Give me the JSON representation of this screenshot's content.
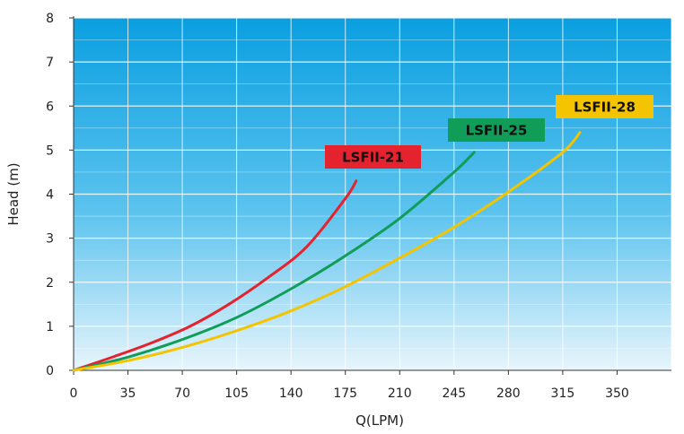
{
  "chart_data": {
    "type": "line",
    "title": "",
    "xlabel": "Q(LPM)",
    "ylabel": "Head (m)",
    "xlim": [
      0,
      385
    ],
    "ylim": [
      0,
      8
    ],
    "x_ticks": [
      "0",
      "35",
      "70",
      "105",
      "140",
      "175",
      "210",
      "245",
      "280",
      "315",
      "350"
    ],
    "y_ticks": [
      "0",
      "1",
      "2",
      "3",
      "4",
      "5",
      "6",
      "7",
      "8"
    ],
    "grid": true,
    "background_gradient": [
      "#0a9fe0",
      "#e8f5fc"
    ],
    "series": [
      {
        "name": "LSFII-21",
        "color": "#e5232f",
        "label_color": "#e5232f",
        "label_text_color": "#111111",
        "x": [
          0,
          25,
          50,
          75,
          100,
          125,
          150,
          175,
          182
        ],
        "y": [
          0,
          0.3,
          0.62,
          1.0,
          1.5,
          2.1,
          2.8,
          3.9,
          4.3
        ]
      },
      {
        "name": "LSFII-25",
        "color": "#0f9d58",
        "label_color": "#0f9d58",
        "label_text_color": "#111111",
        "x": [
          0,
          35,
          70,
          105,
          140,
          175,
          210,
          245,
          258
        ],
        "y": [
          0,
          0.3,
          0.7,
          1.2,
          1.85,
          2.6,
          3.45,
          4.5,
          4.95
        ]
      },
      {
        "name": "LSFII-28",
        "color": "#f5c400",
        "label_color": "#f5c400",
        "label_text_color": "#111111",
        "x": [
          0,
          35,
          70,
          105,
          140,
          175,
          210,
          245,
          280,
          315,
          326
        ],
        "y": [
          0,
          0.22,
          0.52,
          0.9,
          1.35,
          1.9,
          2.55,
          3.25,
          4.05,
          4.95,
          5.4
        ]
      }
    ]
  }
}
